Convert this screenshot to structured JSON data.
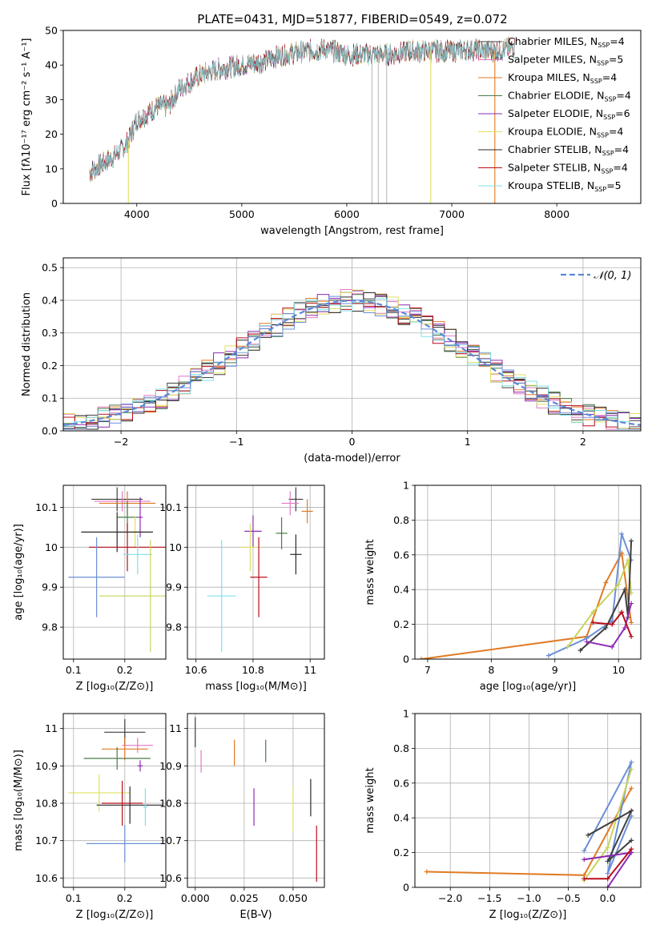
{
  "palette": [
    "#3f3f3f",
    "#e377c2",
    "#e07b24",
    "#4a7a4a",
    "#8e2bb5",
    "#e0e060",
    "#2a2a2a",
    "#b80f1c",
    "#7fe0e8",
    "#6b8fd6",
    "#c9d35a"
  ],
  "figure_title": "PLATE=0431, MJD=51877, FIBERID=0549, z=0.072",
  "chart_data": [
    {
      "id": "spectrum",
      "type": "line",
      "xlabel": "wavelength [Angstrom, rest frame]",
      "ylabel": "Flux [fλ10⁻¹⁷ erg cm⁻² s⁻¹ A⁻¹]",
      "xlim": [
        3300,
        8800
      ],
      "ylim": [
        0,
        50
      ],
      "xticks": [
        4000,
        5000,
        6000,
        7000,
        8000
      ],
      "yticks": [
        0,
        10,
        20,
        30,
        40,
        50
      ],
      "legend_position": "top-right",
      "legend": [
        "Chabrier MILES, N_SSP=4",
        "Salpeter MILES, N_SSP=5",
        "Kroupa MILES, N_SSP=4",
        "Chabrier ELODIE, N_SSP=4",
        "Salpeter ELODIE, N_SSP=6",
        "Kroupa ELODIE, N_SSP=4",
        "Chabrier STELIB, N_SSP=4",
        "Salpeter STELIB, N_SSP=4",
        "Kroupa STELIB, N_SSP=5"
      ],
      "continuum": {
        "x": [
          3550,
          3700,
          3800,
          3900,
          4000,
          4100,
          4200,
          4300,
          4400,
          4500,
          4600,
          4800,
          5000,
          5200,
          5400,
          5600,
          5800,
          6000,
          6200,
          6400,
          6600,
          6800,
          7000,
          7200,
          7400,
          7600
        ],
        "y": [
          9,
          12,
          14,
          17,
          24,
          26,
          28,
          28,
          33,
          35,
          37,
          39,
          40,
          41,
          43,
          44,
          44.5,
          43,
          43,
          43,
          44,
          44,
          44,
          44.5,
          44,
          45
        ]
      },
      "dropouts": [
        3920,
        6240,
        6300,
        6380,
        6800,
        7410
      ]
    },
    {
      "id": "residuals",
      "type": "area",
      "xlabel": "(data-model)/error",
      "ylabel": "Normed distribution",
      "xlim": [
        -2.5,
        2.5
      ],
      "ylim": [
        0,
        0.53
      ],
      "xticks": [
        -2,
        -1,
        0,
        1,
        2
      ],
      "xtick_labels": [
        "−2",
        "−1",
        "0",
        "1",
        "2"
      ],
      "yticks": [
        0.0,
        0.1,
        0.2,
        0.3,
        0.4,
        0.5
      ],
      "grid": true,
      "legend_position": "top-right",
      "legend": [
        "𝒩(0, 1)"
      ],
      "gaussian": {
        "mean": 0,
        "sigma": 1
      }
    },
    {
      "id": "age-vs-Z",
      "type": "scatter",
      "xlabel": "Z [log₁₀(Z/Z⊙)]",
      "ylabel": "age  [log₁₀(age/yr)]",
      "xlim": [
        0.08,
        0.28
      ],
      "ylim": [
        9.72,
        10.155
      ],
      "xticks": [
        0.1,
        0.2
      ],
      "yticks": [
        9.8,
        9.9,
        10.0,
        10.1
      ],
      "grid": true,
      "points": [
        {
          "x": 0.185,
          "y": 10.12,
          "xerr": 0.05,
          "yerr": 0.03
        },
        {
          "x": 0.195,
          "y": 10.115,
          "xerr": 0.055,
          "yerr": 0.025
        },
        {
          "x": 0.205,
          "y": 10.11,
          "xerr": 0.055,
          "yerr": 0.03
        },
        {
          "x": 0.205,
          "y": 10.075,
          "xerr": 0.02,
          "yerr": 0.04
        },
        {
          "x": 0.23,
          "y": 10.075,
          "xerr": 0.005,
          "yerr": 0.05
        },
        {
          "x": 0.22,
          "y": 10.038,
          "xerr": 0.02,
          "yerr": 0.04
        },
        {
          "x": 0.185,
          "y": 10.038,
          "xerr": 0.07,
          "yerr": 0.05
        },
        {
          "x": 0.205,
          "y": 10.0,
          "xerr": 0.075,
          "yerr": 0.06
        },
        {
          "x": 0.225,
          "y": 9.982,
          "xerr": 0.028,
          "yerr": 0.05
        },
        {
          "x": 0.145,
          "y": 9.925,
          "xerr": 0.055,
          "yerr": 0.1
        },
        {
          "x": 0.25,
          "y": 9.878,
          "xerr": 0.1,
          "yerr": 0.14
        }
      ]
    },
    {
      "id": "age-vs-mass",
      "type": "scatter",
      "xlabel": "mass [log₁₀(M/M⊙)]",
      "xlim": [
        10.57,
        11.05
      ],
      "ylim": [
        9.72,
        10.155
      ],
      "xticks": [
        10.6,
        10.8,
        11.0
      ],
      "yticks": [
        9.8,
        9.9,
        10.0,
        10.1
      ],
      "grid": true,
      "points": [
        {
          "x": 10.95,
          "y": 10.12,
          "xerr": 0.025,
          "yerr": 0.03
        },
        {
          "x": 10.93,
          "y": 10.11,
          "xerr": 0.03,
          "yerr": 0.03
        },
        {
          "x": 10.99,
          "y": 10.09,
          "xerr": 0.02,
          "yerr": 0.03
        },
        {
          "x": 10.9,
          "y": 10.035,
          "xerr": 0.02,
          "yerr": 0.04
        },
        {
          "x": 10.8,
          "y": 10.04,
          "xerr": 0.03,
          "yerr": 0.04
        },
        {
          "x": 10.79,
          "y": 10.0,
          "xerr": 0.035,
          "yerr": 0.06
        },
        {
          "x": 10.95,
          "y": 9.982,
          "xerr": 0.02,
          "yerr": 0.05
        },
        {
          "x": 10.82,
          "y": 9.925,
          "xerr": 0.03,
          "yerr": 0.1
        },
        {
          "x": 10.69,
          "y": 9.878,
          "xerr": 0.05,
          "yerr": 0.14
        }
      ]
    },
    {
      "id": "massweight-vs-age",
      "type": "line",
      "xlabel": "age  [log₁₀(age/yr)]",
      "ylabel": "mass weight",
      "xlim": [
        6.8,
        10.35
      ],
      "ylim": [
        0,
        1
      ],
      "xticks": [
        7,
        8,
        9,
        10
      ],
      "yticks": [
        0.0,
        0.2,
        0.4,
        0.6,
        0.8,
        1.0
      ],
      "grid": true,
      "series": [
        {
          "x": [
            6.9,
            9.5,
            9.8,
            10.05,
            10.2
          ],
          "y": [
            0.0,
            0.13,
            0.44,
            0.61,
            0.21
          ]
        },
        {
          "x": [
            8.9,
            9.5,
            9.9,
            10.05,
            10.2
          ],
          "y": [
            0.02,
            0.12,
            0.22,
            0.72,
            0.57
          ]
        },
        {
          "x": [
            9.2,
            9.6,
            10.0,
            10.15,
            10.2
          ],
          "y": [
            0.07,
            0.27,
            0.43,
            0.57,
            0.38
          ]
        },
        {
          "x": [
            9.4,
            9.8,
            10.1,
            10.15,
            10.2
          ],
          "y": [
            0.05,
            0.18,
            0.4,
            0.24,
            0.68
          ]
        },
        {
          "x": [
            9.5,
            9.9,
            10.1,
            10.2
          ],
          "y": [
            0.1,
            0.07,
            0.18,
            0.32
          ]
        },
        {
          "x": [
            9.6,
            9.9,
            10.05,
            10.2
          ],
          "y": [
            0.21,
            0.2,
            0.27,
            0.13
          ]
        }
      ]
    },
    {
      "id": "mass-vs-Z",
      "type": "scatter",
      "xlabel": "Z [log₁₀(Z/Z⊙)]",
      "ylabel": "mass [log₁₀(M/M⊙)]",
      "xlim": [
        0.08,
        0.28
      ],
      "ylim": [
        10.575,
        11.04
      ],
      "xticks": [
        0.1,
        0.2
      ],
      "yticks": [
        10.6,
        10.7,
        10.8,
        10.9,
        11.0
      ],
      "grid": true,
      "points": [
        {
          "x": 0.2,
          "y": 10.99,
          "xerr": 0.04,
          "yerr": 0.035
        },
        {
          "x": 0.225,
          "y": 10.955,
          "xerr": 0.03,
          "yerr": 0.02
        },
        {
          "x": 0.2,
          "y": 10.945,
          "xerr": 0.045,
          "yerr": 0.03
        },
        {
          "x": 0.185,
          "y": 10.92,
          "xerr": 0.065,
          "yerr": 0.03
        },
        {
          "x": 0.23,
          "y": 10.9,
          "xerr": 0.005,
          "yerr": 0.015
        },
        {
          "x": 0.15,
          "y": 10.828,
          "xerr": 0.06,
          "yerr": 0.05
        },
        {
          "x": 0.21,
          "y": 10.795,
          "xerr": 0.065,
          "yerr": 0.05
        },
        {
          "x": 0.195,
          "y": 10.8,
          "xerr": 0.04,
          "yerr": 0.06
        },
        {
          "x": 0.24,
          "y": 10.79,
          "xerr": 0.004,
          "yerr": 0.05
        },
        {
          "x": 0.2,
          "y": 10.692,
          "xerr": 0.075,
          "yerr": 0.05
        }
      ]
    },
    {
      "id": "mass-vs-EBV",
      "type": "scatter",
      "xlabel": "E(B-V)",
      "xlim": [
        -0.004,
        0.066
      ],
      "ylim": [
        10.575,
        11.04
      ],
      "xticks": [
        0.0,
        0.025,
        0.05
      ],
      "xtick_labels": [
        "0.000",
        "0.025",
        "0.050"
      ],
      "yticks": [
        10.6,
        10.7,
        10.8,
        10.9,
        11.0
      ],
      "grid": true,
      "points": [
        {
          "x": 0.0,
          "y": 10.99,
          "yerr": 0.04
        },
        {
          "x": 0.003,
          "y": 10.912,
          "yerr": 0.03
        },
        {
          "x": 0.02,
          "y": 10.935,
          "yerr": 0.035
        },
        {
          "x": 0.036,
          "y": 10.94,
          "yerr": 0.03
        },
        {
          "x": 0.03,
          "y": 10.79,
          "yerr": 0.05
        },
        {
          "x": 0.05,
          "y": 10.785,
          "yerr": 0.06
        },
        {
          "x": 0.059,
          "y": 10.815,
          "yerr": 0.05
        },
        {
          "x": 0.062,
          "y": 10.665,
          "yerr": 0.075
        }
      ]
    },
    {
      "id": "massweight-vs-Z",
      "type": "line",
      "xlabel": "Z [log₁₀(Z/Z⊙)]",
      "ylabel": "mass weight",
      "xlim": [
        -2.45,
        0.42
      ],
      "ylim": [
        0,
        1
      ],
      "xticks": [
        -2.0,
        -1.5,
        -1.0,
        -0.5,
        0.0
      ],
      "xtick_labels": [
        "−2.0",
        "−1.5",
        "−1.0",
        "−0.5",
        "0.0"
      ],
      "yticks": [
        0.0,
        0.2,
        0.4,
        0.6,
        0.8,
        1.0
      ],
      "grid": true,
      "series": [
        {
          "x": [
            -2.3,
            -0.3,
            0.3
          ],
          "y": [
            0.09,
            0.07,
            0.57
          ]
        },
        {
          "x": [
            -0.3,
            0.3,
            0.0,
            0.3
          ],
          "y": [
            0.21,
            0.72,
            0.08,
            0.41
          ]
        },
        {
          "x": [
            -0.3,
            0.0,
            0.3
          ],
          "y": [
            0.04,
            0.23,
            0.68
          ]
        },
        {
          "x": [
            -0.25,
            0.3,
            0.0,
            0.3
          ],
          "y": [
            0.3,
            0.44,
            0.15,
            0.27
          ]
        },
        {
          "x": [
            0.0,
            0.3,
            -0.3
          ],
          "y": [
            0.0,
            0.2,
            0.16
          ]
        },
        {
          "x": [
            -0.3,
            0.0,
            0.3
          ],
          "y": [
            0.05,
            0.05,
            0.22
          ]
        }
      ]
    }
  ]
}
